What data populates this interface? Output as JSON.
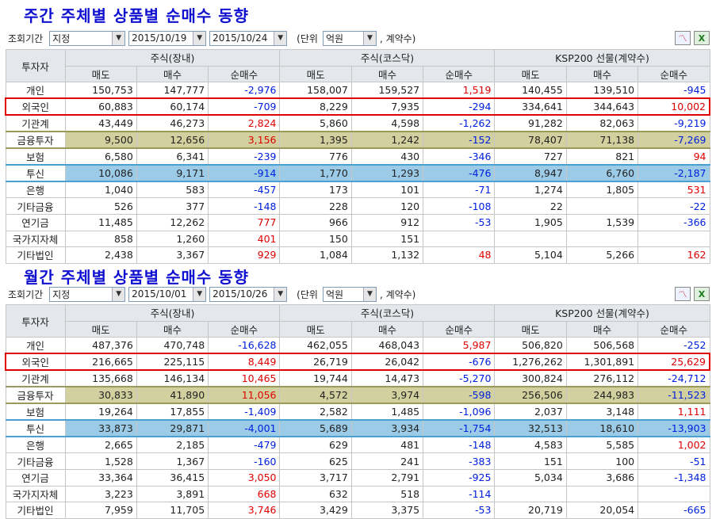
{
  "weekly": {
    "title": "주간 주체별 상품별 순매수 동향",
    "period_label": "조회기간",
    "mode": "지정",
    "date_from": "2015/10/19",
    "date_to": "2015/10/24",
    "unit_prefix": "(단위",
    "unit_value": "억원",
    "unit_suffix": ", 계약수)",
    "headers": {
      "investor": "투자자",
      "groups": [
        "주식(장내)",
        "주식(코스닥)",
        "KSP200 선물(계약수)"
      ],
      "sub": [
        "매도",
        "매수",
        "순매수",
        "매도",
        "매수",
        "순매수",
        "매도",
        "매수",
        "순매수"
      ]
    },
    "rows": [
      {
        "name": "개인",
        "style": "",
        "cells": [
          "150,753",
          "147,777",
          "-2,976",
          "158,007",
          "159,527",
          "1,519",
          "140,455",
          "139,510",
          "-945"
        ]
      },
      {
        "name": "외국인",
        "style": "redbox",
        "cells": [
          "60,883",
          "60,174",
          "-709",
          "8,229",
          "7,935",
          "-294",
          "334,641",
          "344,643",
          "10,002"
        ]
      },
      {
        "name": "기관계",
        "style": "",
        "cells": [
          "43,449",
          "46,273",
          "2,824",
          "5,860",
          "4,598",
          "-1,262",
          "91,282",
          "82,063",
          "-9,219"
        ]
      },
      {
        "name": "금융투자",
        "style": "olive olivebox",
        "cells": [
          "9,500",
          "12,656",
          "3,156",
          "1,395",
          "1,242",
          "-152",
          "78,407",
          "71,138",
          "-7,269"
        ]
      },
      {
        "name": "보험",
        "style": "",
        "cells": [
          "6,580",
          "6,341",
          "-239",
          "776",
          "430",
          "-346",
          "727",
          "821",
          "94"
        ]
      },
      {
        "name": "투신",
        "style": "blue bluebox",
        "cells": [
          "10,086",
          "9,171",
          "-914",
          "1,770",
          "1,293",
          "-476",
          "8,947",
          "6,760",
          "-2,187"
        ]
      },
      {
        "name": "은행",
        "style": "",
        "cells": [
          "1,040",
          "583",
          "-457",
          "173",
          "101",
          "-71",
          "1,274",
          "1,805",
          "531"
        ]
      },
      {
        "name": "기타금융",
        "style": "",
        "cells": [
          "526",
          "377",
          "-148",
          "228",
          "120",
          "-108",
          "22",
          "",
          "-22"
        ]
      },
      {
        "name": "연기금",
        "style": "",
        "cells": [
          "11,485",
          "12,262",
          "777",
          "966",
          "912",
          "-53",
          "1,905",
          "1,539",
          "-366"
        ]
      },
      {
        "name": "국가지자체",
        "style": "",
        "cells": [
          "858",
          "1,260",
          "401",
          "150",
          "151",
          "",
          "",
          "",
          ""
        ]
      },
      {
        "name": "기타법인",
        "style": "",
        "cells": [
          "2,438",
          "3,367",
          "929",
          "1,084",
          "1,132",
          "48",
          "5,104",
          "5,266",
          "162"
        ]
      }
    ]
  },
  "monthly": {
    "title": "월간 주체별 상품별 순매수 동향",
    "period_label": "조회기간",
    "mode": "지정",
    "date_from": "2015/10/01",
    "date_to": "2015/10/26",
    "unit_prefix": "(단위",
    "unit_value": "억원",
    "unit_suffix": ", 계약수)",
    "headers": {
      "investor": "투자자",
      "groups": [
        "주식(장내)",
        "주식(코스닥)",
        "KSP200 선물(계약수)"
      ],
      "sub": [
        "매도",
        "매수",
        "순매수",
        "매도",
        "매수",
        "순매수",
        "매도",
        "매수",
        "순매수"
      ]
    },
    "rows": [
      {
        "name": "개인",
        "style": "",
        "cells": [
          "487,376",
          "470,748",
          "-16,628",
          "462,055",
          "468,043",
          "5,987",
          "506,820",
          "506,568",
          "-252"
        ]
      },
      {
        "name": "외국인",
        "style": "redbox",
        "cells": [
          "216,665",
          "225,115",
          "8,449",
          "26,719",
          "26,042",
          "-676",
          "1,276,262",
          "1,301,891",
          "25,629"
        ]
      },
      {
        "name": "기관계",
        "style": "",
        "cells": [
          "135,668",
          "146,134",
          "10,465",
          "19,744",
          "14,473",
          "-5,270",
          "300,824",
          "276,112",
          "-24,712"
        ]
      },
      {
        "name": "금융투자",
        "style": "olive olivebox",
        "cells": [
          "30,833",
          "41,890",
          "11,056",
          "4,572",
          "3,974",
          "-598",
          "256,506",
          "244,983",
          "-11,523"
        ]
      },
      {
        "name": "보험",
        "style": "",
        "cells": [
          "19,264",
          "17,855",
          "-1,409",
          "2,582",
          "1,485",
          "-1,096",
          "2,037",
          "3,148",
          "1,111"
        ]
      },
      {
        "name": "투신",
        "style": "blue bluebox",
        "cells": [
          "33,873",
          "29,871",
          "-4,001",
          "5,689",
          "3,934",
          "-1,754",
          "32,513",
          "18,610",
          "-13,903"
        ]
      },
      {
        "name": "은행",
        "style": "",
        "cells": [
          "2,665",
          "2,185",
          "-479",
          "629",
          "481",
          "-148",
          "4,583",
          "5,585",
          "1,002"
        ]
      },
      {
        "name": "기타금융",
        "style": "",
        "cells": [
          "1,528",
          "1,367",
          "-160",
          "625",
          "241",
          "-383",
          "151",
          "100",
          "-51"
        ]
      },
      {
        "name": "연기금",
        "style": "",
        "cells": [
          "33,364",
          "36,415",
          "3,050",
          "3,717",
          "2,791",
          "-925",
          "5,034",
          "3,686",
          "-1,348"
        ]
      },
      {
        "name": "국가지자체",
        "style": "",
        "cells": [
          "3,223",
          "3,891",
          "668",
          "632",
          "518",
          "-114",
          "",
          "",
          ""
        ]
      },
      {
        "name": "기타법인",
        "style": "",
        "cells": [
          "7,959",
          "11,705",
          "3,746",
          "3,429",
          "3,375",
          "-53",
          "20,719",
          "20,054",
          "-665"
        ]
      }
    ]
  },
  "icons": {
    "chart": "line-chart-icon",
    "excel": "excel-export-icon"
  }
}
